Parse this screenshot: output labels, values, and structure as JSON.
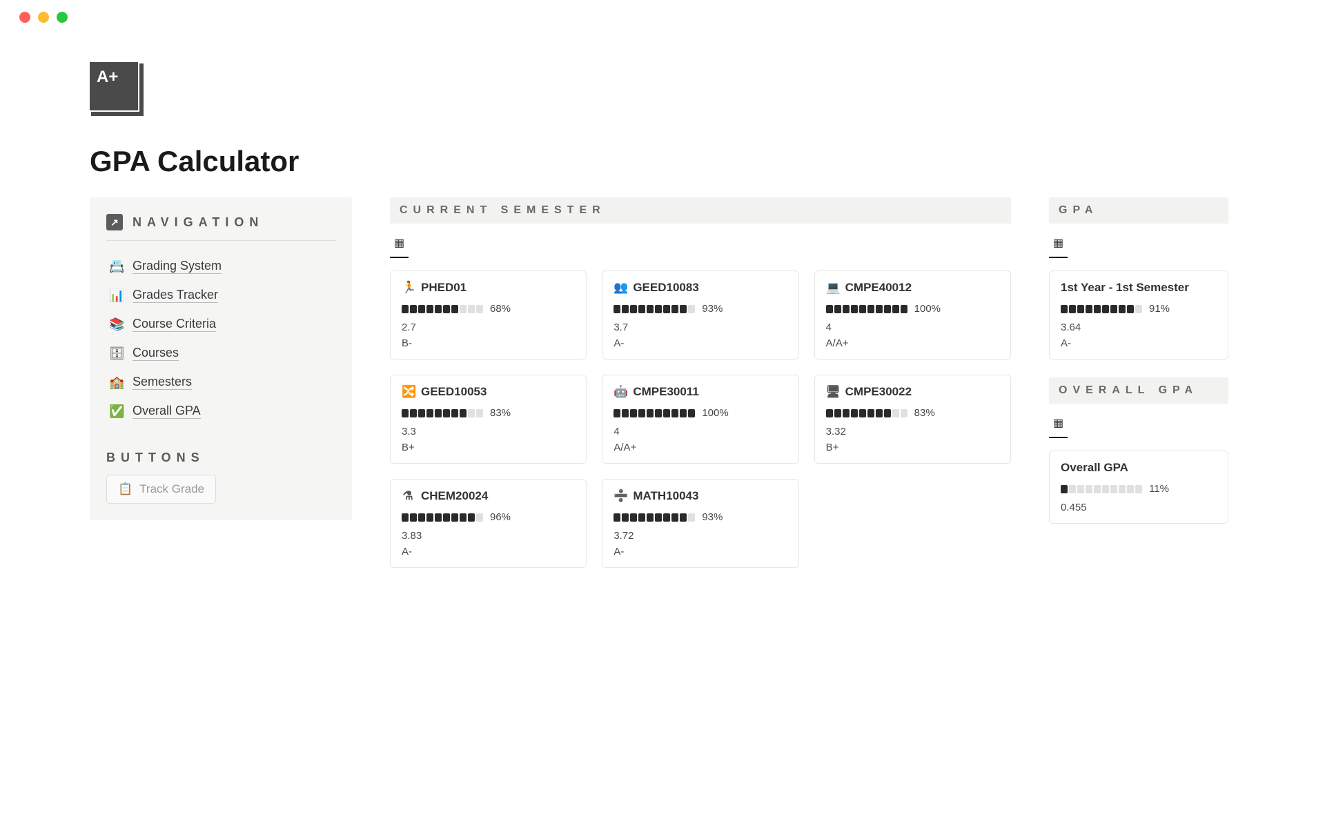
{
  "page": {
    "title": "GPA Calculator"
  },
  "sidebar": {
    "navigation_label": "NAVIGATION",
    "buttons_label": "BUTTONS",
    "items": [
      {
        "icon": "📇",
        "label": "Grading System"
      },
      {
        "icon": "📊",
        "label": "Grades Tracker"
      },
      {
        "icon": "📚",
        "label": "Course Criteria"
      },
      {
        "icon": "🗄",
        "label": "Courses"
      },
      {
        "icon": "🏫",
        "label": "Semesters"
      },
      {
        "icon": "✅",
        "label": "Overall GPA"
      }
    ],
    "track_button": "Track Grade"
  },
  "current_semester": {
    "heading": "CURRENT SEMESTER",
    "cards": [
      {
        "icon": "🏃",
        "code": "PHED01",
        "percent": 68,
        "progress": 7,
        "gpa": "2.7",
        "grade": "B-"
      },
      {
        "icon": "👥",
        "code": "GEED10083",
        "percent": 93,
        "progress": 9,
        "gpa": "3.7",
        "grade": "A-"
      },
      {
        "icon": "💻",
        "code": "CMPE40012",
        "percent": 100,
        "progress": 10,
        "gpa": "4",
        "grade": "A/A+"
      },
      {
        "icon": "🔀",
        "code": "GEED10053",
        "percent": 83,
        "progress": 8,
        "gpa": "3.3",
        "grade": "B+"
      },
      {
        "icon": "🤖",
        "code": "CMPE30011",
        "percent": 100,
        "progress": 10,
        "gpa": "4",
        "grade": "A/A+"
      },
      {
        "icon": "🖥",
        "code": "CMPE30022",
        "percent": 83,
        "progress": 8,
        "gpa": "3.32",
        "grade": "B+"
      },
      {
        "icon": "⚗",
        "code": "CHEM20024",
        "percent": 96,
        "progress": 9,
        "gpa": "3.83",
        "grade": "A-"
      },
      {
        "icon": "➗",
        "code": "MATH10043",
        "percent": 93,
        "progress": 9,
        "gpa": "3.72",
        "grade": "A-"
      }
    ]
  },
  "gpa": {
    "heading": "GPA",
    "cards": [
      {
        "title": "1st Year - 1st Semester",
        "percent": 91,
        "progress": 9,
        "gpa": "3.64",
        "grade": "A-"
      }
    ]
  },
  "overall": {
    "heading": "OVERALL GPA",
    "cards": [
      {
        "title": "Overall GPA",
        "percent": 11,
        "progress": 1,
        "gpa": "0.455"
      }
    ]
  },
  "style": {
    "bar_segments": 10,
    "bar_fill_color": "#2a2a2a",
    "bar_empty_color": "#e0e0e0",
    "card_border": "#e6e6e6",
    "section_bg": "#f2f2f1",
    "sidebar_bg": "#f5f5f4"
  }
}
